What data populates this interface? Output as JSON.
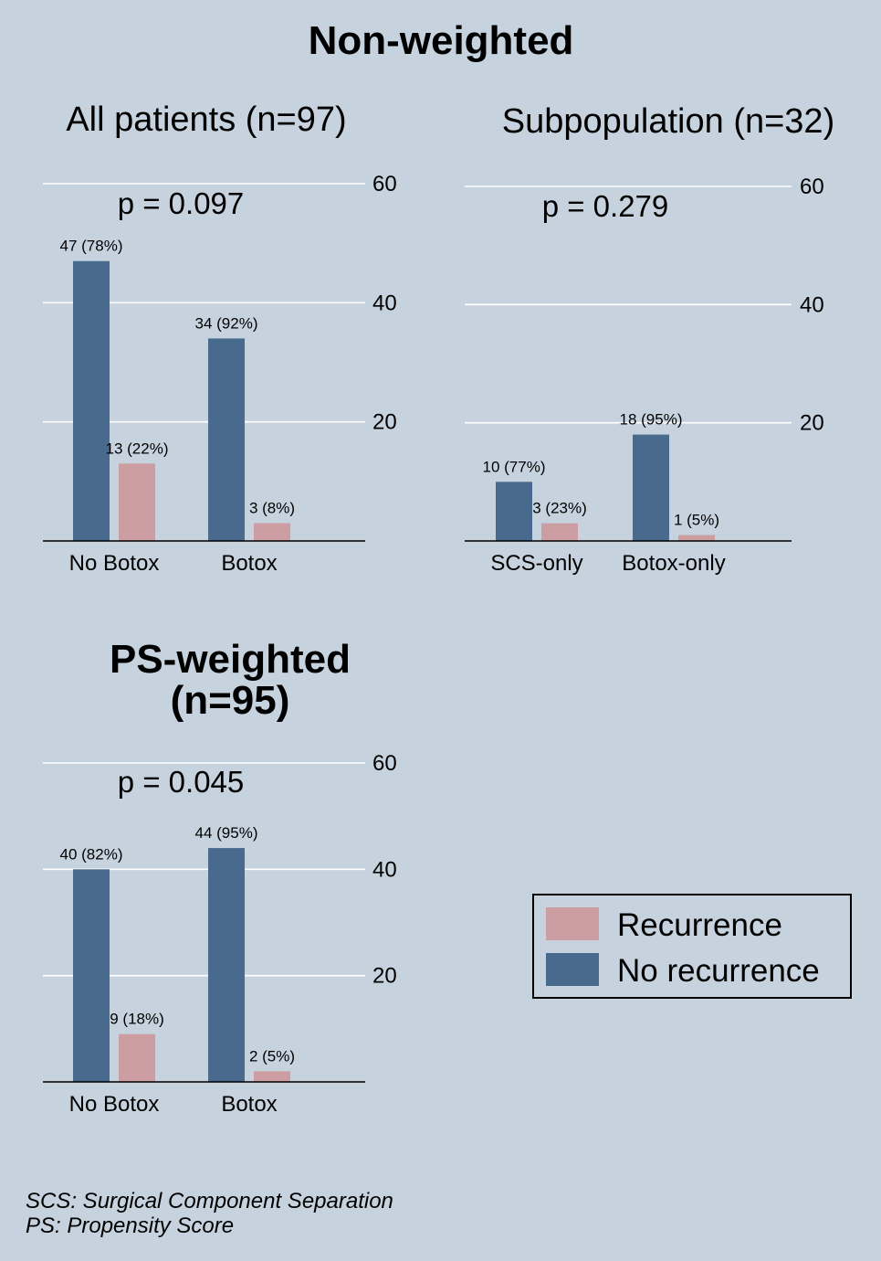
{
  "title": "Non-weighted",
  "legend": {
    "items": [
      {
        "label": "Recurrence",
        "color": "#cc9ea2"
      },
      {
        "label": "No recurrence",
        "color": "#486a8c"
      }
    ],
    "position": "bottom-right"
  },
  "footnotes": [
    "SCS: Surgical Component Separation",
    "PS: Propensity Score"
  ],
  "colors": {
    "background": "#c6d3df",
    "no_recurrence": "#486a8c",
    "recurrence": "#cc9ea2",
    "grid": "#ffffff"
  },
  "chart_data": [
    {
      "type": "bar",
      "title": "All patients (n=97)",
      "annotation": "p = 0.097",
      "categories": [
        "No Botox",
        "Botox"
      ],
      "series": [
        {
          "name": "No recurrence",
          "values": [
            47,
            34
          ],
          "labels": [
            "47 (78%)",
            "34 (92%)"
          ]
        },
        {
          "name": "Recurrence",
          "values": [
            13,
            3
          ],
          "labels": [
            "13 (22%)",
            "3 (8%)"
          ]
        }
      ],
      "yticks": [
        "20",
        "40",
        "60"
      ],
      "ylim": [
        0,
        60
      ],
      "grid": true,
      "yaxis_side": "right"
    },
    {
      "type": "bar",
      "title": "Subpopulation (n=32)",
      "annotation": "p = 0.279",
      "categories": [
        "SCS-only",
        "Botox-only"
      ],
      "series": [
        {
          "name": "No recurrence",
          "values": [
            10,
            18
          ],
          "labels": [
            "10 (77%)",
            "18 (95%)"
          ]
        },
        {
          "name": "Recurrence",
          "values": [
            3,
            1
          ],
          "labels": [
            "3 (23%)",
            "1 (5%)"
          ]
        }
      ],
      "yticks": [
        "20",
        "40",
        "60"
      ],
      "ylim": [
        0,
        60
      ],
      "grid": true,
      "yaxis_side": "right"
    },
    {
      "type": "bar",
      "title": "PS-weighted\n(n=95)",
      "annotation": "p = 0.045",
      "categories": [
        "No Botox",
        "Botox"
      ],
      "series": [
        {
          "name": "No recurrence",
          "values": [
            40,
            44
          ],
          "labels": [
            "40 (82%)",
            "44 (95%)"
          ]
        },
        {
          "name": "Recurrence",
          "values": [
            9,
            2
          ],
          "labels": [
            "9 (18%)",
            "2 (5%)"
          ]
        }
      ],
      "yticks": [
        "20",
        "40",
        "60"
      ],
      "ylim": [
        0,
        60
      ],
      "grid": true,
      "yaxis_side": "right"
    }
  ]
}
